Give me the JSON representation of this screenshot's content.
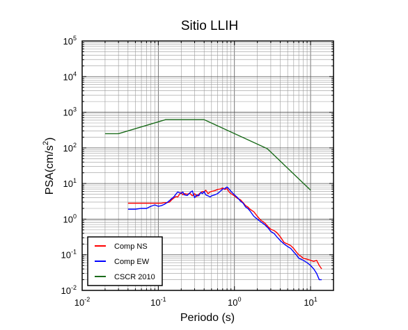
{
  "chart_data": {
    "type": "line",
    "title": "Sitio LLIH",
    "xlabel": "Periodo (s)",
    "ylabel": "PSA(cm/s2)",
    "ylabel_base": "PSA(cm/s",
    "ylabel_sup": "2",
    "ylabel_close": ")",
    "x_scale": "log",
    "y_scale": "log",
    "xlim": [
      0.01,
      20
    ],
    "ylim": [
      0.01,
      100000
    ],
    "grid": true,
    "legend_position": "bottom-left",
    "x_ticks": [
      {
        "base": "10",
        "exp": "-2"
      },
      {
        "base": "10",
        "exp": "-1"
      },
      {
        "base": "10",
        "exp": "0"
      },
      {
        "base": "10",
        "exp": "1"
      }
    ],
    "y_ticks": [
      {
        "base": "10",
        "exp": "-2"
      },
      {
        "base": "10",
        "exp": "-1"
      },
      {
        "base": "10",
        "exp": "0"
      },
      {
        "base": "10",
        "exp": "1"
      },
      {
        "base": "10",
        "exp": "2"
      },
      {
        "base": "10",
        "exp": "3"
      },
      {
        "base": "10",
        "exp": "4"
      },
      {
        "base": "10",
        "exp": "5"
      }
    ],
    "series": [
      {
        "name": "Comp NS",
        "color": "#ff0000",
        "x": [
          0.04,
          0.05,
          0.06,
          0.07,
          0.08,
          0.09,
          0.1,
          0.11,
          0.12,
          0.13,
          0.14,
          0.15,
          0.16,
          0.17,
          0.18,
          0.19,
          0.2,
          0.21,
          0.22,
          0.24,
          0.26,
          0.28,
          0.3,
          0.32,
          0.34,
          0.36,
          0.38,
          0.4,
          0.42,
          0.45,
          0.48,
          0.5,
          0.55,
          0.6,
          0.65,
          0.7,
          0.75,
          0.8,
          0.85,
          0.9,
          1.0,
          1.1,
          1.2,
          1.3,
          1.4,
          1.5,
          1.6,
          1.8,
          2.0,
          2.2,
          2.5,
          2.8,
          3.0,
          3.3,
          3.6,
          4.0,
          4.5,
          5.0,
          5.5,
          6.0,
          6.5,
          7.0,
          7.5,
          8.0,
          9.0,
          10.0,
          11.0,
          12.0,
          13.0,
          14.0
        ],
        "values": [
          2.8,
          2.8,
          2.8,
          2.8,
          2.8,
          2.8,
          2.8,
          2.8,
          2.9,
          2.9,
          3.0,
          3.5,
          3.9,
          4.3,
          4.2,
          5.0,
          5.6,
          4.8,
          5.2,
          5.0,
          5.3,
          4.5,
          5.2,
          4.3,
          5.0,
          5.5,
          6.0,
          5.8,
          6.5,
          5.2,
          5.8,
          6.0,
          6.3,
          6.8,
          7.0,
          7.5,
          6.8,
          7.2,
          5.8,
          5.2,
          4.5,
          3.8,
          3.5,
          2.9,
          2.4,
          2.2,
          1.9,
          1.6,
          1.2,
          0.95,
          0.78,
          0.6,
          0.52,
          0.48,
          0.42,
          0.32,
          0.22,
          0.2,
          0.18,
          0.15,
          0.12,
          0.1,
          0.09,
          0.08,
          0.075,
          0.07,
          0.065,
          0.07,
          0.05,
          0.04
        ]
      },
      {
        "name": "Comp EW",
        "color": "#0000ff",
        "x": [
          0.04,
          0.05,
          0.06,
          0.07,
          0.08,
          0.09,
          0.1,
          0.11,
          0.12,
          0.13,
          0.14,
          0.15,
          0.16,
          0.17,
          0.18,
          0.19,
          0.2,
          0.21,
          0.22,
          0.24,
          0.26,
          0.28,
          0.3,
          0.32,
          0.34,
          0.36,
          0.38,
          0.4,
          0.42,
          0.45,
          0.48,
          0.5,
          0.55,
          0.6,
          0.65,
          0.7,
          0.75,
          0.8,
          0.85,
          0.9,
          1.0,
          1.1,
          1.2,
          1.3,
          1.4,
          1.5,
          1.6,
          1.8,
          2.0,
          2.2,
          2.5,
          2.8,
          3.0,
          3.3,
          3.6,
          4.0,
          4.5,
          5.0,
          5.5,
          6.0,
          6.5,
          7.0,
          7.5,
          8.0,
          9.0,
          10.0,
          11.0,
          12.0,
          13.0,
          14.0
        ],
        "values": [
          1.9,
          1.9,
          2.0,
          2.0,
          2.3,
          2.5,
          2.3,
          2.4,
          2.6,
          2.9,
          3.3,
          3.8,
          4.2,
          5.0,
          5.8,
          5.5,
          5.3,
          5.8,
          4.8,
          4.6,
          5.5,
          6.2,
          4.0,
          4.8,
          4.5,
          5.6,
          5.2,
          6.0,
          4.8,
          4.5,
          4.2,
          4.5,
          4.8,
          5.2,
          6.0,
          7.0,
          7.2,
          8.0,
          7.0,
          6.0,
          4.8,
          4.0,
          3.2,
          2.8,
          2.2,
          2.0,
          1.7,
          1.2,
          1.0,
          0.85,
          0.7,
          0.55,
          0.45,
          0.4,
          0.32,
          0.25,
          0.2,
          0.17,
          0.15,
          0.12,
          0.1,
          0.08,
          0.075,
          0.07,
          0.06,
          0.05,
          0.04,
          0.03,
          0.02,
          0.02
        ]
      },
      {
        "name": "CSCR 2010",
        "color": "#1a6b1a",
        "x": [
          0.02,
          0.03,
          0.125,
          0.4,
          2.7,
          10.0
        ],
        "values": [
          250,
          250,
          620,
          620,
          95,
          6.5
        ]
      }
    ]
  }
}
